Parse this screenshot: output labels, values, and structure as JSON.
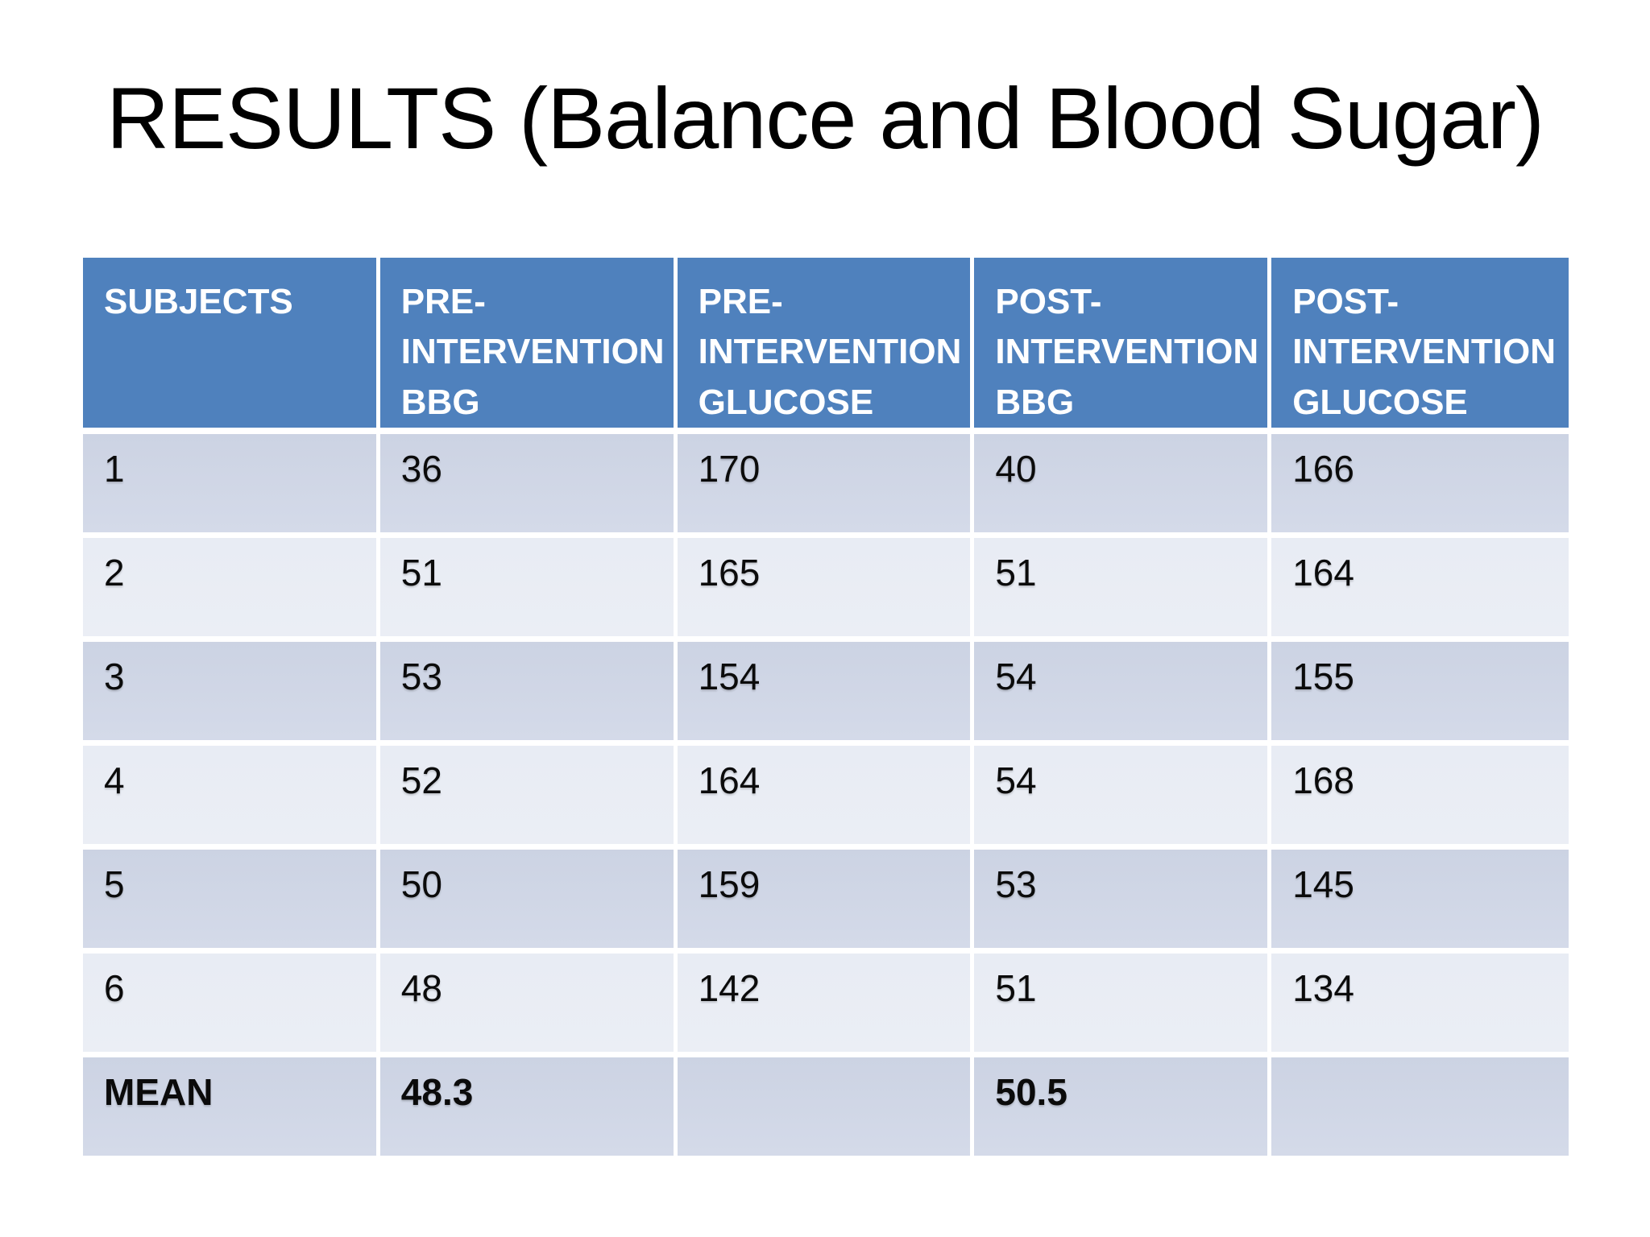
{
  "slide": {
    "title": "RESULTS (Balance and Blood Sugar)"
  },
  "table": {
    "columns": [
      "SUBJECTS",
      "PRE-INTERVENTION BBG",
      "PRE-INTERVENTION GLUCOSE",
      "POST-INTERVENTION BBG",
      "POST-INTERVENTION GLUCOSE"
    ],
    "rows": [
      [
        "1",
        "36",
        "170",
        "40",
        "166"
      ],
      [
        "2",
        "51",
        "165",
        "51",
        "164"
      ],
      [
        "3",
        "53",
        "154",
        "54",
        "155"
      ],
      [
        "4",
        "52",
        "164",
        "54",
        "168"
      ],
      [
        "5",
        "50",
        "159",
        "53",
        "145"
      ],
      [
        "6",
        "48",
        "142",
        "51",
        "134"
      ],
      [
        "MEAN",
        "48.3",
        "",
        "50.5",
        ""
      ]
    ],
    "colors": {
      "header_bg": "#4F81BD",
      "band_dark": "#D0D8E8",
      "band_light": "#E9EDF4",
      "header_text": "#FFFFFF",
      "body_text": "#000000",
      "divider": "#FFFFFF"
    }
  }
}
